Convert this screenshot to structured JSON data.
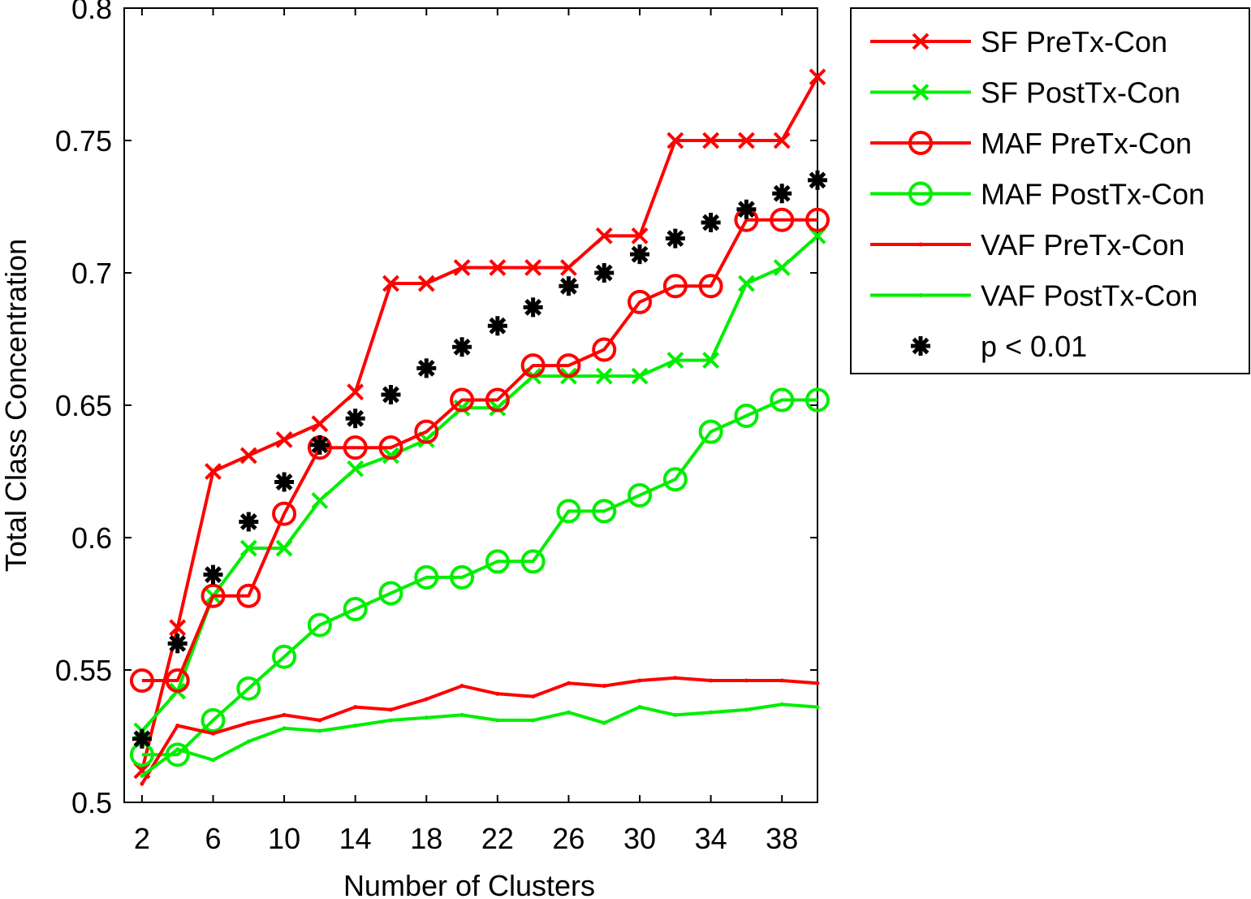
{
  "chart_data": {
    "type": "line",
    "title": "",
    "xlabel": "Number of Clusters",
    "ylabel": "Total Class Concentration",
    "xlim": [
      1,
      40
    ],
    "ylim": [
      0.5,
      0.8
    ],
    "xticks": [
      2,
      6,
      10,
      14,
      18,
      22,
      26,
      30,
      34,
      38
    ],
    "xtick_labels": [
      "2",
      "6",
      "10",
      "14",
      "18",
      "22",
      "26",
      "30",
      "34",
      "38"
    ],
    "yticks": [
      0.5,
      0.55,
      0.6,
      0.65,
      0.7,
      0.75,
      0.8
    ],
    "ytick_labels": [
      "0.5",
      "0.55",
      "0.6",
      "0.65",
      "0.7",
      "0.75",
      "0.8"
    ],
    "legend_position": "outside-right-top",
    "x": [
      2,
      4,
      6,
      8,
      10,
      12,
      14,
      16,
      18,
      20,
      22,
      24,
      26,
      28,
      30,
      32,
      34,
      36,
      38,
      40
    ],
    "series": [
      {
        "name": "SF PreTx-Con",
        "color": "#ff0000",
        "marker": "x",
        "values": [
          0.512,
          0.566,
          0.625,
          0.631,
          0.637,
          0.643,
          0.655,
          0.696,
          0.696,
          0.702,
          0.702,
          0.702,
          0.702,
          0.714,
          0.714,
          0.75,
          0.75,
          0.75,
          0.75,
          0.774
        ]
      },
      {
        "name": "SF PostTx-Con",
        "color": "#00ee00",
        "marker": "x",
        "values": [
          0.527,
          0.542,
          0.578,
          0.596,
          0.596,
          0.614,
          0.626,
          0.631,
          0.637,
          0.649,
          0.649,
          0.661,
          0.661,
          0.661,
          0.661,
          0.667,
          0.667,
          0.696,
          0.702,
          0.714
        ]
      },
      {
        "name": "MAF PreTx-Con",
        "color": "#ff0000",
        "marker": "o",
        "values": [
          0.546,
          0.546,
          0.578,
          0.578,
          0.609,
          0.634,
          0.634,
          0.634,
          0.64,
          0.652,
          0.652,
          0.665,
          0.665,
          0.671,
          0.689,
          0.695,
          0.695,
          0.72,
          0.72,
          0.72
        ]
      },
      {
        "name": "MAF PostTx-Con",
        "color": "#00ee00",
        "marker": "o",
        "values": [
          0.518,
          0.518,
          0.531,
          0.543,
          0.555,
          0.567,
          0.573,
          0.579,
          0.585,
          0.585,
          0.591,
          0.591,
          0.61,
          0.61,
          0.616,
          0.622,
          0.64,
          0.646,
          0.652,
          0.652
        ]
      },
      {
        "name": "VAF PreTx-Con",
        "color": "#ff0000",
        "marker": "dot",
        "values": [
          0.507,
          0.529,
          0.526,
          0.53,
          0.533,
          0.531,
          0.536,
          0.535,
          0.539,
          0.544,
          0.541,
          0.54,
          0.545,
          0.544,
          0.546,
          0.547,
          0.546,
          0.546,
          0.546,
          0.545
        ]
      },
      {
        "name": "VAF PostTx-Con",
        "color": "#00ee00",
        "marker": "dot",
        "values": [
          0.51,
          0.52,
          0.516,
          0.523,
          0.528,
          0.527,
          0.529,
          0.531,
          0.532,
          0.533,
          0.531,
          0.531,
          0.534,
          0.53,
          0.536,
          0.533,
          0.534,
          0.535,
          0.537,
          0.536
        ]
      }
    ],
    "significance": {
      "name": "p < 0.01",
      "color": "#000000",
      "marker": "asterisk",
      "x": [
        2,
        4,
        6,
        8,
        10,
        12,
        14,
        16,
        18,
        20,
        22,
        24,
        26,
        28,
        30,
        32,
        34,
        36,
        38,
        40
      ],
      "values": [
        0.524,
        0.56,
        0.586,
        0.606,
        0.621,
        0.635,
        0.645,
        0.654,
        0.664,
        0.672,
        0.68,
        0.687,
        0.695,
        0.7,
        0.707,
        0.713,
        0.719,
        0.724,
        0.73,
        0.735
      ]
    }
  }
}
